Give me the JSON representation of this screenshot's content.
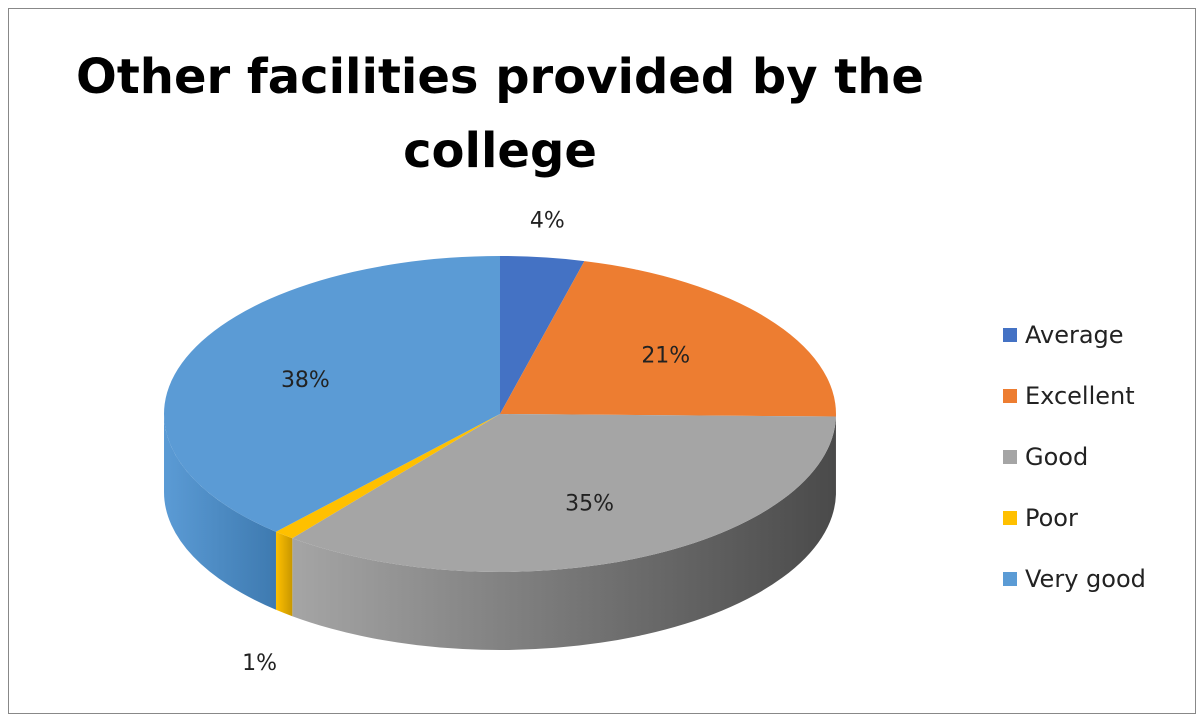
{
  "chart_data": {
    "type": "pie",
    "title_lines": [
      "Other facilities provided by the",
      "college"
    ],
    "categories": [
      "Average",
      "Excellent",
      "Good",
      "Poor",
      "Very good"
    ],
    "values": [
      4,
      21,
      35,
      1,
      38
    ],
    "labels": [
      "4%",
      "21%",
      "35%",
      "1%",
      "38%"
    ],
    "colors": [
      "#4472C4",
      "#ED7D31",
      "#A5A5A5",
      "#FFC000",
      "#5B9BD5"
    ],
    "side_colors": [
      "#2F5597",
      "#C05F19",
      "#4A4A4A",
      "#C89700",
      "#3E7AB0"
    ],
    "style": "3d",
    "legend": "right"
  }
}
